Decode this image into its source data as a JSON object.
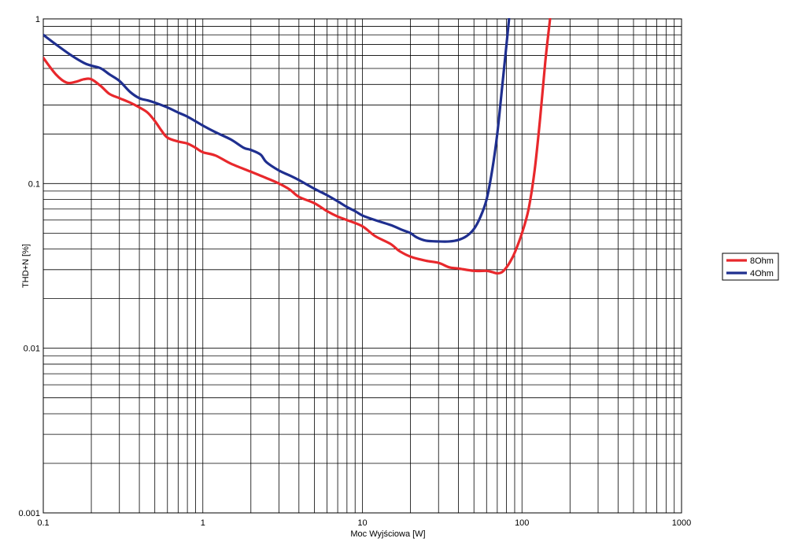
{
  "chart_data": {
    "type": "line",
    "title": "",
    "xlabel": "Moc Wyjściowa [W]",
    "ylabel": "THD+N [%]",
    "x_scale": "log",
    "y_scale": "log",
    "xlim": [
      0.1,
      1000
    ],
    "ylim": [
      0.001,
      1
    ],
    "x_ticks": [
      0.1,
      1,
      10,
      100,
      1000
    ],
    "x_tick_labels": [
      "0.1",
      "1",
      "10",
      "100",
      "1000"
    ],
    "y_ticks": [
      0.001,
      0.01,
      0.1,
      1
    ],
    "y_tick_labels": [
      "0.001",
      "0.01",
      "0.1",
      "1"
    ],
    "grid": true,
    "legend_position": "right",
    "series": [
      {
        "name": "8Ohm",
        "color": "#e8282c",
        "points": [
          [
            0.1,
            0.58
          ],
          [
            0.12,
            0.46
          ],
          [
            0.14,
            0.41
          ],
          [
            0.16,
            0.415
          ],
          [
            0.18,
            0.43
          ],
          [
            0.2,
            0.43
          ],
          [
            0.23,
            0.39
          ],
          [
            0.26,
            0.35
          ],
          [
            0.3,
            0.33
          ],
          [
            0.35,
            0.31
          ],
          [
            0.4,
            0.29
          ],
          [
            0.45,
            0.27
          ],
          [
            0.5,
            0.24
          ],
          [
            0.55,
            0.21
          ],
          [
            0.6,
            0.19
          ],
          [
            0.7,
            0.18
          ],
          [
            0.8,
            0.175
          ],
          [
            0.9,
            0.165
          ],
          [
            1.0,
            0.155
          ],
          [
            1.2,
            0.148
          ],
          [
            1.5,
            0.132
          ],
          [
            2.0,
            0.118
          ],
          [
            2.5,
            0.108
          ],
          [
            3.0,
            0.1
          ],
          [
            3.5,
            0.092
          ],
          [
            4.0,
            0.083
          ],
          [
            5.0,
            0.076
          ],
          [
            6.0,
            0.068
          ],
          [
            7.0,
            0.063
          ],
          [
            8.0,
            0.06
          ],
          [
            10,
            0.055
          ],
          [
            12,
            0.048
          ],
          [
            15,
            0.043
          ],
          [
            17,
            0.039
          ],
          [
            20,
            0.036
          ],
          [
            25,
            0.034
          ],
          [
            30,
            0.033
          ],
          [
            35,
            0.031
          ],
          [
            40,
            0.0305
          ],
          [
            50,
            0.0295
          ],
          [
            60,
            0.0295
          ],
          [
            65,
            0.029
          ],
          [
            70,
            0.0285
          ],
          [
            75,
            0.029
          ],
          [
            80,
            0.031
          ],
          [
            85,
            0.034
          ],
          [
            90,
            0.038
          ],
          [
            100,
            0.05
          ],
          [
            110,
            0.07
          ],
          [
            120,
            0.12
          ],
          [
            130,
            0.25
          ],
          [
            140,
            0.55
          ],
          [
            150,
            1.0
          ]
        ]
      },
      {
        "name": "4Ohm",
        "color": "#1f2f8f",
        "points": [
          [
            0.1,
            0.8
          ],
          [
            0.12,
            0.7
          ],
          [
            0.15,
            0.6
          ],
          [
            0.18,
            0.54
          ],
          [
            0.2,
            0.52
          ],
          [
            0.23,
            0.5
          ],
          [
            0.26,
            0.46
          ],
          [
            0.3,
            0.42
          ],
          [
            0.35,
            0.36
          ],
          [
            0.4,
            0.33
          ],
          [
            0.45,
            0.32
          ],
          [
            0.5,
            0.31
          ],
          [
            0.6,
            0.29
          ],
          [
            0.7,
            0.27
          ],
          [
            0.8,
            0.255
          ],
          [
            1.0,
            0.225
          ],
          [
            1.2,
            0.205
          ],
          [
            1.5,
            0.185
          ],
          [
            1.8,
            0.165
          ],
          [
            2.0,
            0.16
          ],
          [
            2.3,
            0.15
          ],
          [
            2.5,
            0.135
          ],
          [
            3.0,
            0.12
          ],
          [
            3.5,
            0.112
          ],
          [
            4.0,
            0.105
          ],
          [
            5.0,
            0.093
          ],
          [
            6.0,
            0.085
          ],
          [
            7.0,
            0.078
          ],
          [
            8.0,
            0.072
          ],
          [
            9.0,
            0.068
          ],
          [
            10,
            0.064
          ],
          [
            12,
            0.06
          ],
          [
            15,
            0.056
          ],
          [
            18,
            0.052
          ],
          [
            20,
            0.05
          ],
          [
            22,
            0.047
          ],
          [
            25,
            0.045
          ],
          [
            30,
            0.0445
          ],
          [
            35,
            0.0445
          ],
          [
            40,
            0.0455
          ],
          [
            45,
            0.048
          ],
          [
            50,
            0.053
          ],
          [
            55,
            0.063
          ],
          [
            60,
            0.08
          ],
          [
            65,
            0.12
          ],
          [
            70,
            0.2
          ],
          [
            75,
            0.38
          ],
          [
            80,
            0.7
          ],
          [
            83,
            1.0
          ]
        ]
      }
    ]
  }
}
